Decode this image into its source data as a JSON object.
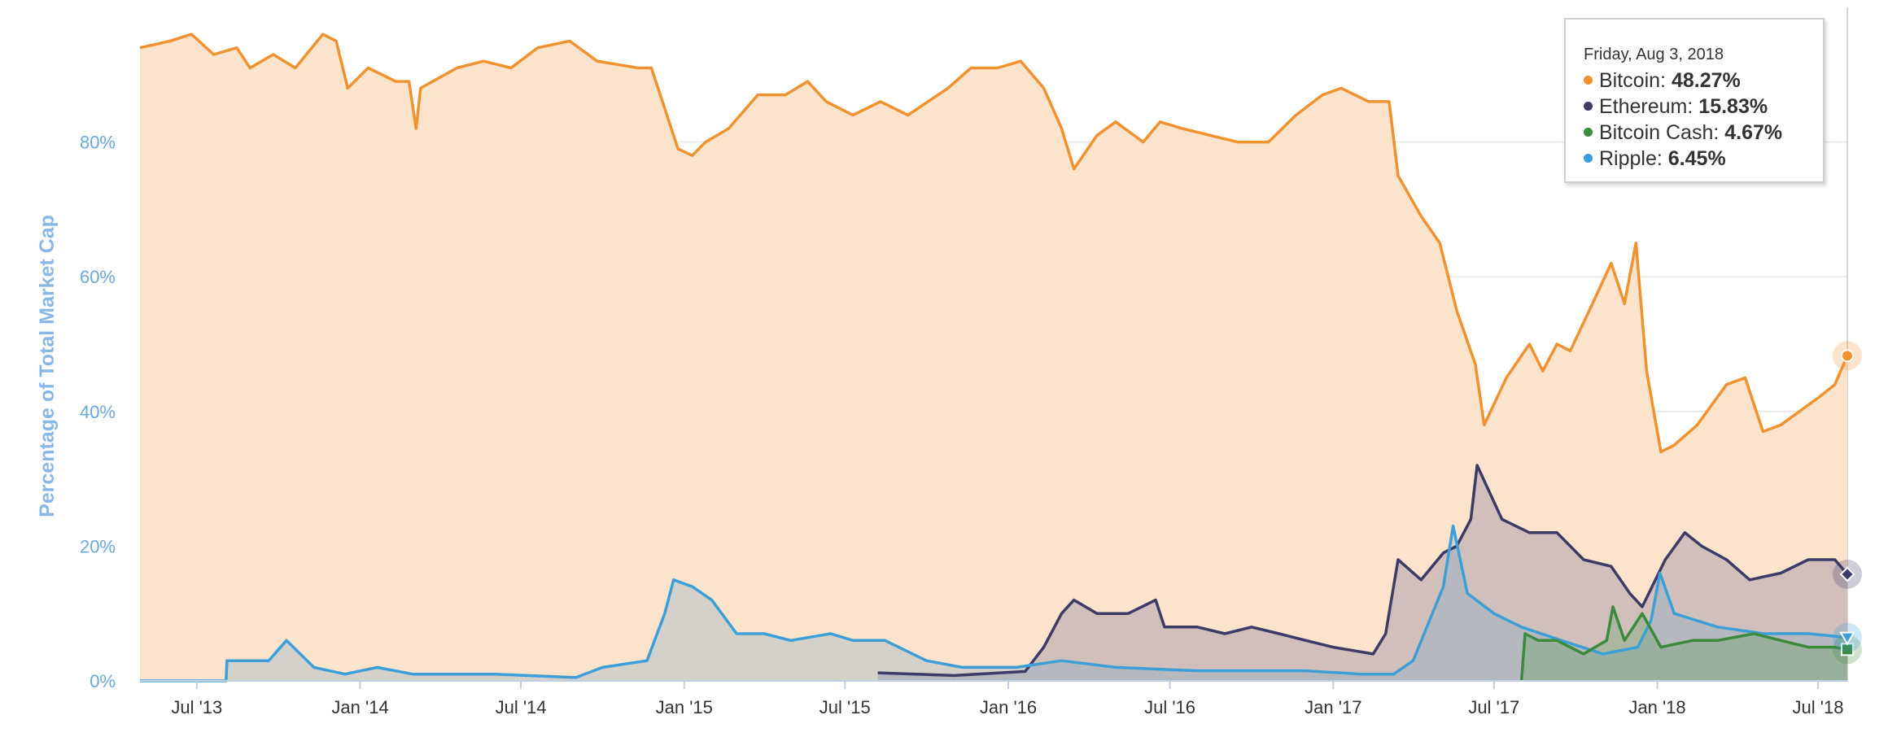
{
  "chart_data": {
    "type": "area",
    "ylabel": "Percentage of Total Market Cap",
    "ylim": [
      0,
      100
    ],
    "y_ticks": [
      "0%",
      "20%",
      "40%",
      "60%",
      "80%"
    ],
    "y_tick_values": [
      0,
      20,
      40,
      60,
      80
    ],
    "x_ticks": [
      "Jul '13",
      "Jan '14",
      "Jul '14",
      "Jan '15",
      "Jul '15",
      "Jan '16",
      "Jul '16",
      "Jan '17",
      "Jul '17",
      "Jan '18",
      "Jul '18"
    ],
    "x_tick_dates": [
      "2013-07-01",
      "2014-01-01",
      "2014-07-01",
      "2015-01-01",
      "2015-07-01",
      "2016-01-01",
      "2016-07-01",
      "2017-01-01",
      "2017-07-01",
      "2018-01-01",
      "2018-07-01"
    ],
    "x_range": [
      "2013-04-28",
      "2018-08-03"
    ],
    "grid": true,
    "colors": {
      "bitcoin_line": "#f0922f",
      "bitcoin_fill": "#fbe3cc",
      "ethereum_line": "#3c3c66",
      "bitcoin_cash_line": "#3c8a3c",
      "ripple_line": "#3d9fd8",
      "grid": "#e6e6e6",
      "ytick": "#6aa8e0",
      "ylabel": "#8ab8e6"
    },
    "series": [
      {
        "name": "Bitcoin",
        "color": "#f0922f",
        "marker": "circle",
        "points": [
          [
            "2013-04-28",
            94
          ],
          [
            "2013-06-01",
            95
          ],
          [
            "2013-06-25",
            96
          ],
          [
            "2013-07-20",
            93
          ],
          [
            "2013-08-15",
            94
          ],
          [
            "2013-08-30",
            91
          ],
          [
            "2013-09-25",
            93
          ],
          [
            "2013-10-20",
            91
          ],
          [
            "2013-11-20",
            96
          ],
          [
            "2013-12-05",
            95
          ],
          [
            "2013-12-18",
            88
          ],
          [
            "2014-01-10",
            91
          ],
          [
            "2014-02-10",
            89
          ],
          [
            "2014-02-25",
            89
          ],
          [
            "2014-03-05",
            82
          ],
          [
            "2014-03-10",
            88
          ],
          [
            "2014-04-20",
            91
          ],
          [
            "2014-05-20",
            92
          ],
          [
            "2014-06-20",
            91
          ],
          [
            "2014-07-20",
            94
          ],
          [
            "2014-08-25",
            95
          ],
          [
            "2014-09-25",
            92
          ],
          [
            "2014-11-10",
            91
          ],
          [
            "2014-11-25",
            91
          ],
          [
            "2014-12-10",
            85
          ],
          [
            "2014-12-25",
            79
          ],
          [
            "2015-01-10",
            78
          ],
          [
            "2015-01-25",
            80
          ],
          [
            "2015-02-20",
            82
          ],
          [
            "2015-03-25",
            87
          ],
          [
            "2015-04-25",
            87
          ],
          [
            "2015-05-20",
            89
          ],
          [
            "2015-06-10",
            86
          ],
          [
            "2015-07-10",
            84
          ],
          [
            "2015-08-10",
            86
          ],
          [
            "2015-09-10",
            84
          ],
          [
            "2015-10-25",
            88
          ],
          [
            "2015-11-20",
            91
          ],
          [
            "2015-12-20",
            91
          ],
          [
            "2016-01-15",
            92
          ],
          [
            "2016-02-10",
            88
          ],
          [
            "2016-03-01",
            82
          ],
          [
            "2016-03-15",
            76
          ],
          [
            "2016-04-10",
            81
          ],
          [
            "2016-05-01",
            83
          ],
          [
            "2016-06-01",
            80
          ],
          [
            "2016-06-20",
            83
          ],
          [
            "2016-07-15",
            82
          ],
          [
            "2016-08-15",
            81
          ],
          [
            "2016-09-15",
            80
          ],
          [
            "2016-10-20",
            80
          ],
          [
            "2016-11-20",
            84
          ],
          [
            "2016-12-20",
            87
          ],
          [
            "2017-01-10",
            88
          ],
          [
            "2017-02-10",
            86
          ],
          [
            "2017-03-05",
            86
          ],
          [
            "2017-03-15",
            75
          ],
          [
            "2017-04-10",
            69
          ],
          [
            "2017-05-01",
            65
          ],
          [
            "2017-05-20",
            55
          ],
          [
            "2017-06-10",
            47
          ],
          [
            "2017-06-20",
            38
          ],
          [
            "2017-07-15",
            45
          ],
          [
            "2017-08-10",
            50
          ],
          [
            "2017-08-25",
            46
          ],
          [
            "2017-09-10",
            50
          ],
          [
            "2017-09-25",
            49
          ],
          [
            "2017-10-20",
            56
          ],
          [
            "2017-11-10",
            62
          ],
          [
            "2017-11-25",
            56
          ],
          [
            "2017-12-08",
            65
          ],
          [
            "2017-12-20",
            46
          ],
          [
            "2018-01-05",
            34
          ],
          [
            "2018-01-20",
            35
          ],
          [
            "2018-02-15",
            38
          ],
          [
            "2018-03-20",
            44
          ],
          [
            "2018-04-10",
            45
          ],
          [
            "2018-04-30",
            37
          ],
          [
            "2018-05-20",
            38
          ],
          [
            "2018-06-10",
            40
          ],
          [
            "2018-07-01",
            42
          ],
          [
            "2018-07-20",
            44
          ],
          [
            "2018-08-03",
            48.27
          ]
        ]
      },
      {
        "name": "Ethereum",
        "color": "#3c3c66",
        "marker": "diamond",
        "points": [
          [
            "2015-08-07",
            1.2
          ],
          [
            "2015-11-01",
            0.8
          ],
          [
            "2016-01-20",
            1.4
          ],
          [
            "2016-02-10",
            5
          ],
          [
            "2016-03-01",
            10
          ],
          [
            "2016-03-15",
            12
          ],
          [
            "2016-04-10",
            10
          ],
          [
            "2016-05-15",
            10
          ],
          [
            "2016-06-15",
            12
          ],
          [
            "2016-06-25",
            8
          ],
          [
            "2016-08-01",
            8
          ],
          [
            "2016-09-01",
            7
          ],
          [
            "2016-10-01",
            8
          ],
          [
            "2016-11-01",
            7
          ],
          [
            "2016-12-01",
            6
          ],
          [
            "2017-01-01",
            5
          ],
          [
            "2017-02-15",
            4
          ],
          [
            "2017-03-01",
            7
          ],
          [
            "2017-03-15",
            18
          ],
          [
            "2017-04-10",
            15
          ],
          [
            "2017-05-05",
            19
          ],
          [
            "2017-05-20",
            20
          ],
          [
            "2017-06-05",
            24
          ],
          [
            "2017-06-12",
            32
          ],
          [
            "2017-07-10",
            24
          ],
          [
            "2017-08-10",
            22
          ],
          [
            "2017-09-10",
            22
          ],
          [
            "2017-10-10",
            18
          ],
          [
            "2017-11-10",
            17
          ],
          [
            "2017-12-01",
            13
          ],
          [
            "2017-12-15",
            11
          ],
          [
            "2018-01-10",
            18
          ],
          [
            "2018-02-01",
            22
          ],
          [
            "2018-02-20",
            20
          ],
          [
            "2018-03-20",
            18
          ],
          [
            "2018-04-15",
            15
          ],
          [
            "2018-05-20",
            16
          ],
          [
            "2018-06-20",
            18
          ],
          [
            "2018-07-20",
            18
          ],
          [
            "2018-08-03",
            15.83
          ]
        ]
      },
      {
        "name": "Bitcoin Cash",
        "color": "#3c8a3c",
        "marker": "square",
        "points": [
          [
            "2017-08-01",
            0
          ],
          [
            "2017-08-05",
            7
          ],
          [
            "2017-08-20",
            6
          ],
          [
            "2017-09-10",
            6
          ],
          [
            "2017-10-10",
            4
          ],
          [
            "2017-11-05",
            6
          ],
          [
            "2017-11-12",
            11
          ],
          [
            "2017-11-25",
            6
          ],
          [
            "2017-12-15",
            10
          ],
          [
            "2018-01-05",
            5
          ],
          [
            "2018-02-10",
            6
          ],
          [
            "2018-03-10",
            6
          ],
          [
            "2018-04-20",
            7
          ],
          [
            "2018-05-20",
            6
          ],
          [
            "2018-06-20",
            5
          ],
          [
            "2018-07-20",
            5
          ],
          [
            "2018-08-03",
            4.67
          ]
        ]
      },
      {
        "name": "Ripple",
        "color": "#3d9fd8",
        "marker": "triangle",
        "points": [
          [
            "2013-04-28",
            0
          ],
          [
            "2013-08-03",
            0
          ],
          [
            "2013-08-04",
            3
          ],
          [
            "2013-09-20",
            3
          ],
          [
            "2013-10-10",
            6
          ],
          [
            "2013-11-10",
            2
          ],
          [
            "2013-12-15",
            1
          ],
          [
            "2014-01-20",
            2
          ],
          [
            "2014-03-01",
            1
          ],
          [
            "2014-06-01",
            1
          ],
          [
            "2014-09-01",
            0.5
          ],
          [
            "2014-10-01",
            2
          ],
          [
            "2014-11-20",
            3
          ],
          [
            "2014-12-10",
            10
          ],
          [
            "2014-12-20",
            15
          ],
          [
            "2015-01-10",
            14
          ],
          [
            "2015-02-01",
            12
          ],
          [
            "2015-03-01",
            7
          ],
          [
            "2015-04-01",
            7
          ],
          [
            "2015-05-01",
            6
          ],
          [
            "2015-06-15",
            7
          ],
          [
            "2015-07-10",
            6
          ],
          [
            "2015-08-15",
            6
          ],
          [
            "2015-10-01",
            3
          ],
          [
            "2015-11-10",
            2
          ],
          [
            "2016-01-10",
            2
          ],
          [
            "2016-03-01",
            3
          ],
          [
            "2016-05-01",
            2
          ],
          [
            "2016-08-01",
            1.5
          ],
          [
            "2016-12-01",
            1.5
          ],
          [
            "2017-02-01",
            1
          ],
          [
            "2017-03-10",
            1
          ],
          [
            "2017-04-01",
            3
          ],
          [
            "2017-05-05",
            14
          ],
          [
            "2017-05-16",
            23
          ],
          [
            "2017-06-01",
            13
          ],
          [
            "2017-07-01",
            10
          ],
          [
            "2017-08-01",
            8
          ],
          [
            "2017-09-15",
            6
          ],
          [
            "2017-11-01",
            4
          ],
          [
            "2017-12-10",
            5
          ],
          [
            "2017-12-25",
            9
          ],
          [
            "2018-01-04",
            16
          ],
          [
            "2018-01-20",
            10
          ],
          [
            "2018-03-10",
            8
          ],
          [
            "2018-05-01",
            7
          ],
          [
            "2018-06-20",
            7
          ],
          [
            "2018-08-03",
            6.45
          ]
        ]
      }
    ]
  },
  "tooltip": {
    "date": "Friday, Aug 3, 2018",
    "rows": [
      {
        "label": "Bitcoin",
        "value": "48.27%",
        "color": "#f0922f"
      },
      {
        "label": "Ethereum",
        "value": "15.83%",
        "color": "#3c3c66"
      },
      {
        "label": "Bitcoin Cash",
        "value": "4.67%",
        "color": "#3c8a3c"
      },
      {
        "label": "Ripple",
        "value": "6.45%",
        "color": "#3d9fd8"
      }
    ]
  }
}
